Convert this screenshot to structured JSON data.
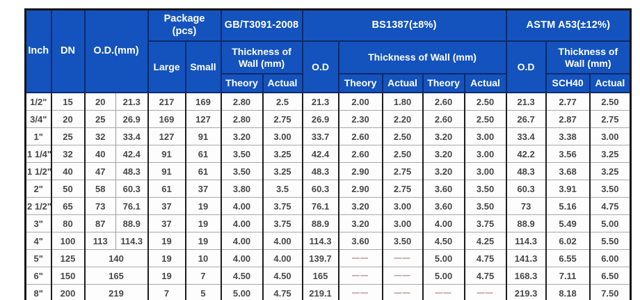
{
  "colors": {
    "header_bg": "#1453bd",
    "header_text": "#ffffff",
    "header_grid": "#0c2a6b",
    "body_text": "#474747",
    "grid_dark": "#1c1c1c",
    "grid_light": "#9a9a9a",
    "dash": "#b0747c",
    "outer_border": "#141414",
    "background": "#ffffff"
  },
  "chart_data": {
    "type": "table",
    "header": {
      "inch": "Inch",
      "dn": "DN",
      "od_mm": "O.D.(mm)",
      "package_line1": "Package",
      "package_line2": "(pcs)",
      "large": "Large",
      "small": "Small",
      "gb_standard": "GB/T3091-2008",
      "bs_standard": "BS1387(±8%)",
      "astm_standard": "ASTM A53(±12%)",
      "thickness_of_wall": "Thickness of Wall (mm)",
      "od": "O.D",
      "theory": "Theory",
      "actual": "Actual",
      "sch40": "SCH40"
    },
    "rows": [
      {
        "inch": "1/2\"",
        "dn": "15",
        "od": [
          "20",
          "21.3"
        ],
        "pkg": [
          "217",
          "169"
        ],
        "gb": [
          "2.80",
          "2.5"
        ],
        "bs_od": "21.3",
        "bs": [
          "2.00",
          "1.80",
          "2.60",
          "2.50"
        ],
        "astm_od": "21.3",
        "astm": [
          "2.77",
          "2.50"
        ]
      },
      {
        "inch": "3/4\"",
        "dn": "20",
        "od": [
          "25",
          "26.9"
        ],
        "pkg": [
          "169",
          "127"
        ],
        "gb": [
          "2.80",
          "2.75"
        ],
        "bs_od": "26.9",
        "bs": [
          "2.30",
          "2.20",
          "2.60",
          "2.50"
        ],
        "astm_od": "26.7",
        "astm": [
          "2.87",
          "2.75"
        ]
      },
      {
        "inch": "1\"",
        "dn": "25",
        "od": [
          "32",
          "33.4"
        ],
        "pkg": [
          "127",
          "91"
        ],
        "gb": [
          "3.20",
          "3.00"
        ],
        "bs_od": "33.7",
        "bs": [
          "2.60",
          "2.50",
          "3.20",
          "3.00"
        ],
        "astm_od": "33.4",
        "astm": [
          "3.38",
          "3.00"
        ]
      },
      {
        "inch": "1 1/4\"",
        "dn": "32",
        "od": [
          "40",
          "42.4"
        ],
        "pkg": [
          "91",
          "61"
        ],
        "gb": [
          "3.50",
          "3.25"
        ],
        "bs_od": "42.4",
        "bs": [
          "2.60",
          "2.50",
          "3.20",
          "3.00"
        ],
        "astm_od": "42.2",
        "astm": [
          "3.56",
          "3.25"
        ]
      },
      {
        "inch": "1 1/2\"",
        "dn": "40",
        "od": [
          "47",
          "48.3"
        ],
        "pkg": [
          "91",
          "61"
        ],
        "gb": [
          "3.50",
          "3.25"
        ],
        "bs_od": "48.3",
        "bs": [
          "2.90",
          "2.75",
          "3.20",
          "3.00"
        ],
        "astm_od": "48.3",
        "astm": [
          "3.68",
          "3.25"
        ]
      },
      {
        "inch": "2\"",
        "dn": "50",
        "od": [
          "58",
          "60.3"
        ],
        "pkg": [
          "61",
          "37"
        ],
        "gb": [
          "3.80",
          "3.5"
        ],
        "bs_od": "60.3",
        "bs": [
          "2.90",
          "2.75",
          "3.60",
          "3.50"
        ],
        "astm_od": "60.3",
        "astm": [
          "3.91",
          "3.50"
        ]
      },
      {
        "inch": "2 1/2\"",
        "dn": "65",
        "od": [
          "73",
          "76.1"
        ],
        "pkg": [
          "37",
          "19"
        ],
        "gb": [
          "4.00",
          "3.75"
        ],
        "bs_od": "76.1",
        "bs": [
          "3.20",
          "3.00",
          "3.60",
          "3.50"
        ],
        "astm_od": "73",
        "astm": [
          "5.16",
          "4.75"
        ]
      },
      {
        "inch": "3\"",
        "dn": "80",
        "od": [
          "87",
          "88.9"
        ],
        "pkg": [
          "37",
          "19"
        ],
        "gb": [
          "4.00",
          "3.75"
        ],
        "bs_od": "88.9",
        "bs": [
          "3.20",
          "3.00",
          "4.00",
          "3.75"
        ],
        "astm_od": "88.9",
        "astm": [
          "5.49",
          "5.00"
        ]
      },
      {
        "inch": "4\"",
        "dn": "100",
        "od": [
          "113",
          "114.3"
        ],
        "pkg": [
          "19",
          "19"
        ],
        "gb": [
          "4.00",
          "4.00"
        ],
        "bs_od": "114.3",
        "bs": [
          "3.60",
          "3.50",
          "4.50",
          "4.25"
        ],
        "astm_od": "114.3",
        "astm": [
          "6.02",
          "5.50"
        ]
      },
      {
        "inch": "5\"",
        "dn": "125",
        "od": [
          "140"
        ],
        "pkg": [
          "19",
          "10"
        ],
        "gb": [
          "4.00",
          "4.00"
        ],
        "bs_od": "139.7",
        "bs": [
          "——",
          "——",
          "5.00",
          "4.75"
        ],
        "astm_od": "141.3",
        "astm": [
          "6.55",
          "6.00"
        ]
      },
      {
        "inch": "6\"",
        "dn": "150",
        "od": [
          "165"
        ],
        "pkg": [
          "19",
          "7"
        ],
        "gb": [
          "4.50",
          "4.50"
        ],
        "bs_od": "165",
        "bs": [
          "——",
          "——",
          "5.00",
          "4.75"
        ],
        "astm_od": "168.3",
        "astm": [
          "7.11",
          "6.50"
        ]
      },
      {
        "inch": "8\"",
        "dn": "200",
        "od": [
          "219"
        ],
        "pkg": [
          "7",
          "5"
        ],
        "gb": [
          "5.00",
          "4.75"
        ],
        "bs_od": "219.1",
        "bs": [
          "——",
          "——",
          "——",
          "——"
        ],
        "astm_od": "219.3",
        "astm": [
          "8.18",
          "7.50"
        ]
      }
    ]
  }
}
